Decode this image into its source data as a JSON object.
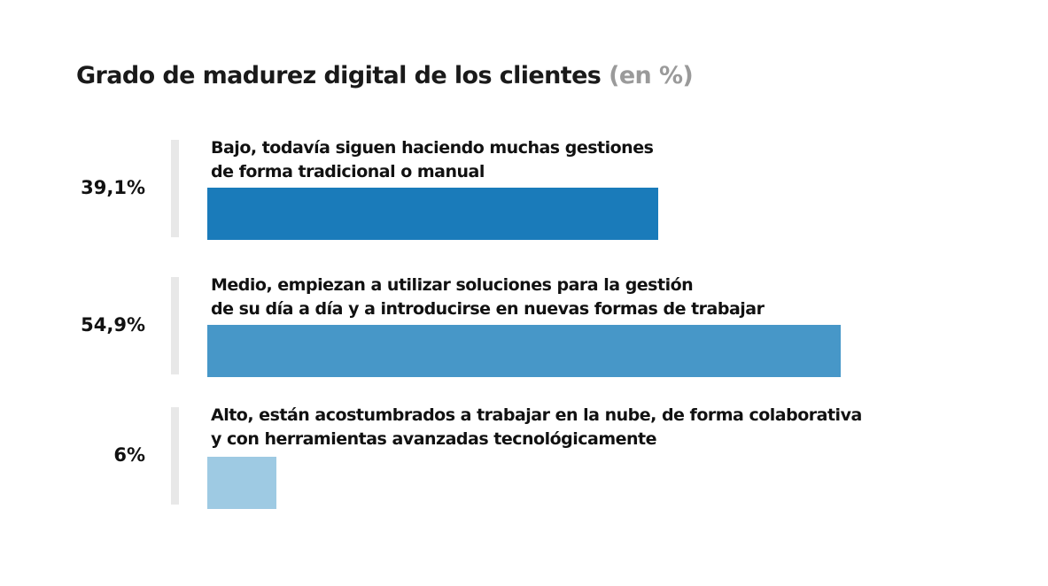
{
  "title": "Grado de madurez digital de los clientes",
  "title_unit": "(en %)",
  "chart_data": {
    "type": "bar",
    "orientation": "horizontal",
    "title": "Grado de madurez digital de los clientes (en %)",
    "categories": [
      "Bajo, todavía siguen haciendo muchas gestiones de forma tradicional o manual",
      "Medio, empiezan a utilizar soluciones para la gestión de su día a día y a introducirse en nuevas formas de trabajar",
      "Alto, están acostumbrados a trabajar en la nube, de forma colaborativa y con herramientas avanzadas tecnológicamente"
    ],
    "values": [
      39.1,
      54.9,
      6
    ],
    "value_labels": [
      "39,1%",
      "54,9%",
      "6%"
    ],
    "label_lines": [
      [
        "Bajo, todavía siguen haciendo muchas gestiones",
        "de forma tradicional o manual"
      ],
      [
        "Medio, empiezan a utilizar soluciones para la gestión",
        "de su día a día y a introducirse en nuevas formas de trabajar"
      ],
      [
        "Alto, están acostumbrados a trabajar en la nube, de forma colaborativa",
        "y con herramientas avanzadas tecnológicamente"
      ]
    ],
    "colors": [
      "#1a7bba",
      "#4797c8",
      "#9ecae3"
    ],
    "xlim": [
      0,
      100
    ],
    "grid": false,
    "legend": "none"
  }
}
